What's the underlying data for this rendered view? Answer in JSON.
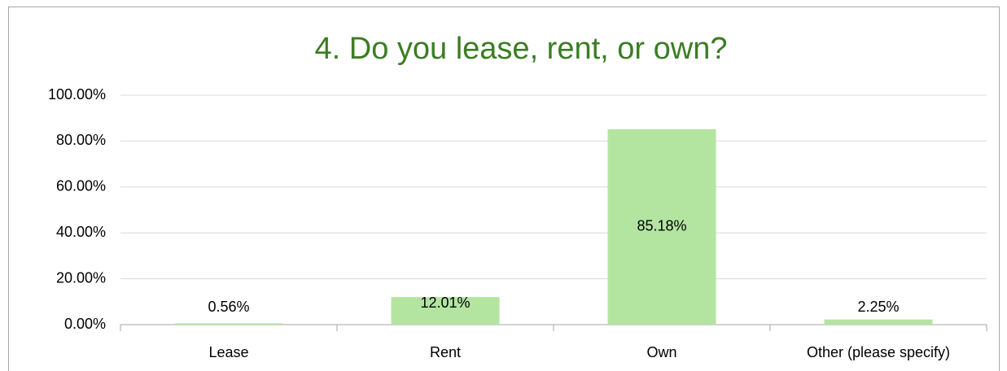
{
  "chart_data": {
    "type": "bar",
    "title": "4. Do you lease, rent, or own?",
    "categories": [
      "Lease",
      "Rent",
      "Own",
      "Other (please specify)"
    ],
    "values": [
      0.56,
      12.01,
      85.18,
      2.25
    ],
    "value_labels": [
      "0.56%",
      "12.01%",
      "85.18%",
      "2.25%"
    ],
    "color": "#b3e5a1",
    "ylim": [
      0,
      100
    ],
    "yticks": [
      {
        "value": 0,
        "label": "0.00%"
      },
      {
        "value": 20,
        "label": "20.00%"
      },
      {
        "value": 40,
        "label": "40.00%"
      },
      {
        "value": 60,
        "label": "60.00%"
      },
      {
        "value": 80,
        "label": "80.00%"
      },
      {
        "value": 100,
        "label": "100.00%"
      }
    ],
    "grid": true
  }
}
